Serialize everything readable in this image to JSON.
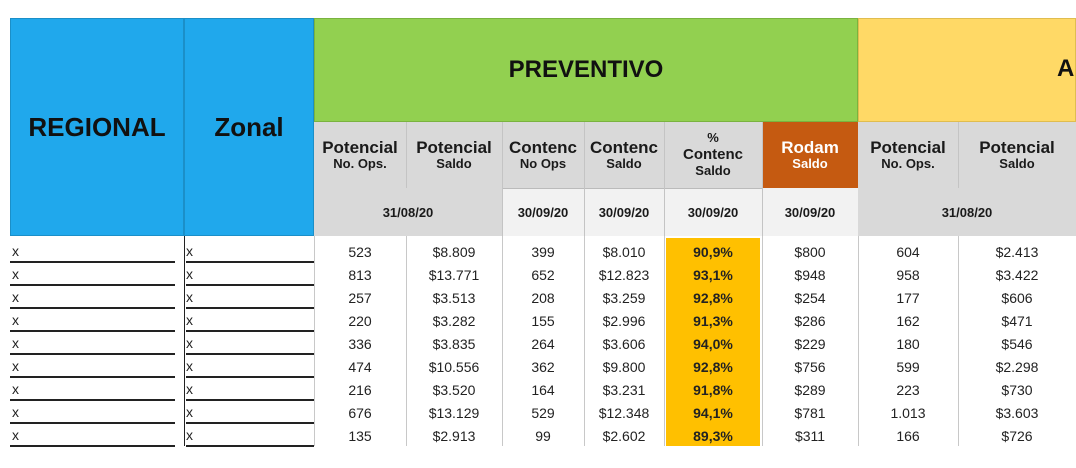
{
  "colors": {
    "blue": "#20a8ec",
    "green": "#92d050",
    "yellow": "#ffd966",
    "orange_header": "#c55a11",
    "pct_fill": "#ffc000",
    "grey_header": "#d9d9d9",
    "light_grey": "#f2f2f2"
  },
  "header": {
    "regional": "REGIONAL",
    "zonal": "Zonal",
    "preventivo": "PREVENTIVO",
    "next_section_partial": "A",
    "cols": [
      {
        "top": "Potencial",
        "bottom": "No. Ops."
      },
      {
        "top": "Potencial",
        "bottom": "Saldo"
      },
      {
        "top": "Contenc",
        "bottom": "No Ops"
      },
      {
        "top": "Contenc",
        "bottom": "Saldo"
      },
      {
        "top": "%",
        "middle": "Contenc",
        "bottom": "Saldo"
      },
      {
        "top": "Rodam",
        "bottom": "Saldo"
      },
      {
        "top": "Potencial",
        "bottom": "No. Ops."
      },
      {
        "top": "Potencial",
        "bottom": "Saldo"
      }
    ],
    "dates": {
      "potencial": "31/08/20",
      "contenc_ops": "30/09/20",
      "contenc_saldo": "30/09/20",
      "pct": "30/09/20",
      "rodam": "30/09/20",
      "potencial2": "31/08/20"
    }
  },
  "rows": [
    {
      "regional": "x",
      "zonal": "x",
      "v": [
        "523",
        "$8.809",
        "399",
        "$8.010",
        "90,9%",
        "$800",
        "604",
        "$2.413"
      ]
    },
    {
      "regional": "x",
      "zonal": "x",
      "v": [
        "813",
        "$13.771",
        "652",
        "$12.823",
        "93,1%",
        "$948",
        "958",
        "$3.422"
      ]
    },
    {
      "regional": "x",
      "zonal": "x",
      "v": [
        "257",
        "$3.513",
        "208",
        "$3.259",
        "92,8%",
        "$254",
        "177",
        "$606"
      ]
    },
    {
      "regional": "x",
      "zonal": "x",
      "v": [
        "220",
        "$3.282",
        "155",
        "$2.996",
        "91,3%",
        "$286",
        "162",
        "$471"
      ]
    },
    {
      "regional": "x",
      "zonal": "x",
      "v": [
        "336",
        "$3.835",
        "264",
        "$3.606",
        "94,0%",
        "$229",
        "180",
        "$546"
      ]
    },
    {
      "regional": "x",
      "zonal": "x",
      "v": [
        "474",
        "$10.556",
        "362",
        "$9.800",
        "92,8%",
        "$756",
        "599",
        "$2.298"
      ]
    },
    {
      "regional": "x",
      "zonal": "x",
      "v": [
        "216",
        "$3.520",
        "164",
        "$3.231",
        "91,8%",
        "$289",
        "223",
        "$730"
      ]
    },
    {
      "regional": "x",
      "zonal": "x",
      "v": [
        "676",
        "$13.129",
        "529",
        "$12.348",
        "94,1%",
        "$781",
        "1.013",
        "$3.603"
      ]
    },
    {
      "regional": "x",
      "zonal": "x",
      "v": [
        "135",
        "$2.913",
        "99",
        "$2.602",
        "89,3%",
        "$311",
        "166",
        "$726"
      ]
    }
  ]
}
